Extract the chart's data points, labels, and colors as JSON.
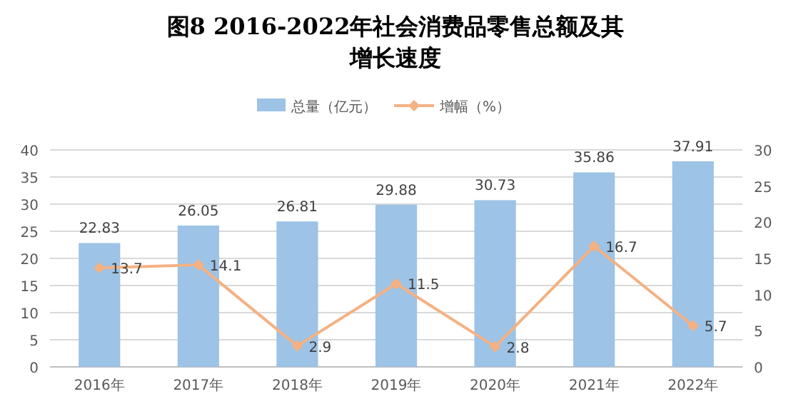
{
  "chart_data": {
    "type": "bar",
    "title": "图8  2016-2022年社会消费品零售总额及其增长速度",
    "categories": [
      "2016年",
      "2017年",
      "2018年",
      "2019年",
      "2020年",
      "2021年",
      "2022年"
    ],
    "series": [
      {
        "name": "总量（亿元）",
        "color": "#9dc3e6",
        "values": [
          22.83,
          26.05,
          26.81,
          29.88,
          30.73,
          35.86,
          37.91
        ]
      },
      {
        "name": "增幅（%）",
        "type": "line",
        "axis": "y2",
        "color": "#f4b183",
        "marker": "diamond",
        "values": [
          13.7,
          14.1,
          2.9,
          11.5,
          2.8,
          16.7,
          5.7
        ]
      }
    ],
    "ylim": [
      0,
      40
    ],
    "yticks": [
      0,
      5,
      10,
      15,
      20,
      25,
      30,
      35,
      40
    ],
    "y2lim": [
      0,
      30
    ],
    "y2ticks": [
      0,
      5,
      10,
      15,
      20,
      25,
      30
    ],
    "grid": "y",
    "legend": "top",
    "data_labels": true
  }
}
